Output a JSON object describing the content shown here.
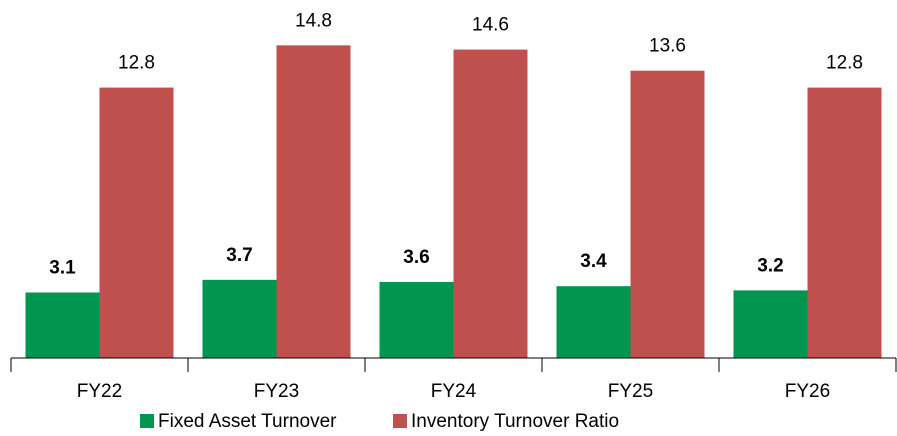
{
  "chart_data": {
    "type": "bar",
    "categories": [
      "FY22",
      "FY23",
      "FY24",
      "FY25",
      "FY26"
    ],
    "series": [
      {
        "name": "Fixed Asset Turnover",
        "color": "#00964f",
        "label_color": "#1a6e1a",
        "values": [
          3.1,
          3.7,
          3.6,
          3.4,
          3.2
        ]
      },
      {
        "name": "Inventory Turnover Ratio",
        "color": "#c0504d",
        "label_color": "#c00000",
        "values": [
          12.8,
          14.8,
          14.6,
          13.6,
          12.8
        ]
      }
    ],
    "ylim": [
      0,
      16
    ],
    "legend": "bottom"
  }
}
